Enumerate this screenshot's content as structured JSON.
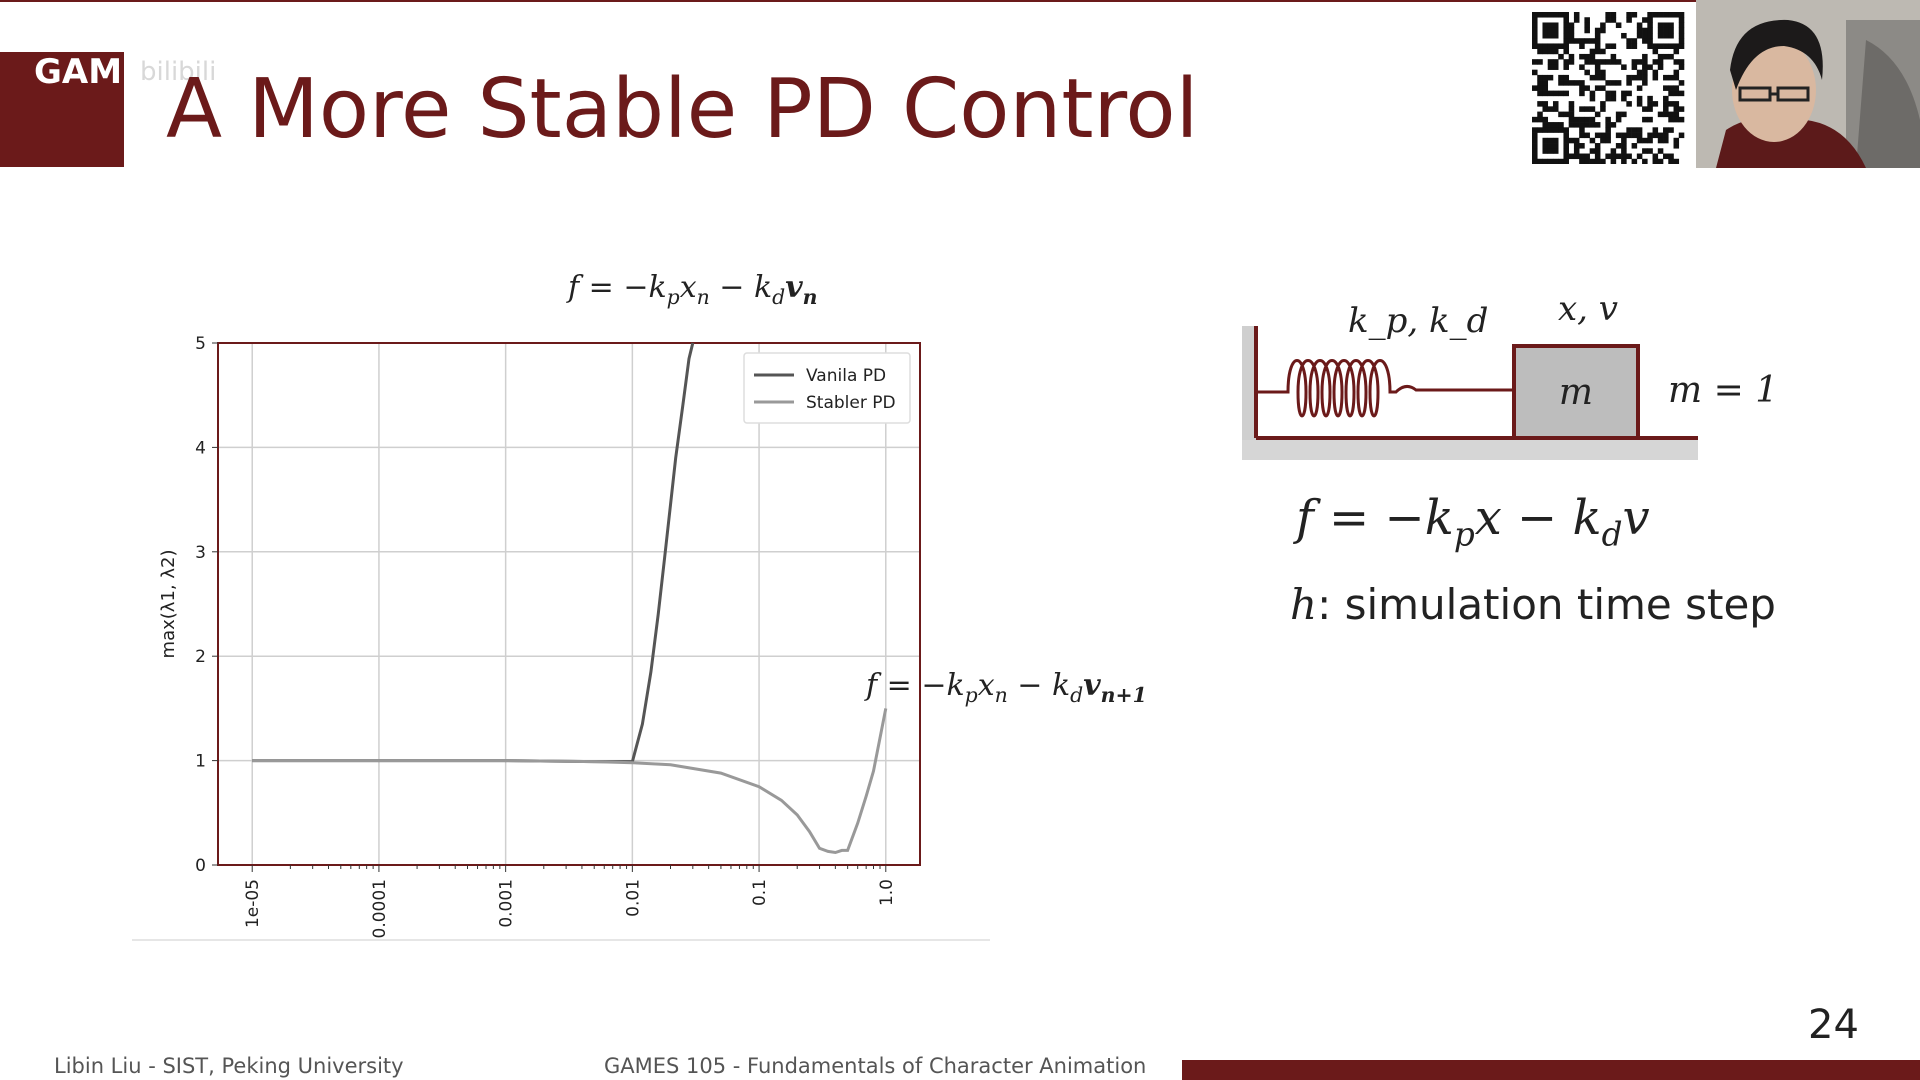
{
  "slide": {
    "title": "A More Stable PD Control",
    "brand": "GAMES",
    "watermark": "bilibili",
    "page_number": "24",
    "footer_left": "Libin Liu - SIST, Peking University",
    "footer_center": "GAMES 105 - Fundamentals of Character Animation",
    "accent_color": "#6b1a1a"
  },
  "formulas": {
    "top": {
      "f": "f",
      "eq": " = −k",
      "p": "p",
      "x": "x",
      "n1": "n",
      "m": " − k",
      "d": "d",
      "v": "v",
      "n2": "n"
    },
    "lower": {
      "f": "f",
      "eq": " = −k",
      "p": "p",
      "x": "x",
      "n1": "n",
      "m": " − k",
      "d": "d",
      "v": "v",
      "n2": "n+1"
    }
  },
  "chart_data": {
    "type": "line",
    "title": "",
    "xlabel": "",
    "ylabel": "max(λ1, λ2)",
    "x_scale": "log",
    "xlim": [
      1e-05,
      1.0
    ],
    "ylim": [
      0,
      5
    ],
    "x_ticks": [
      "1e-05",
      "0.0001",
      "0.001",
      "0.01",
      "0.1",
      "1.0"
    ],
    "x_tick_values": [
      1e-05,
      0.0001,
      0.001,
      0.01,
      0.1,
      1.0
    ],
    "y_ticks": [
      "0",
      "1",
      "2",
      "3",
      "4",
      "5"
    ],
    "y_tick_values": [
      0,
      1,
      2,
      3,
      4,
      5
    ],
    "grid": true,
    "legend_position": "top-right",
    "series": [
      {
        "name": "Vanila PD",
        "color": "#555555",
        "x": [
          1e-05,
          0.0001,
          0.001,
          0.005,
          0.01,
          0.012,
          0.014,
          0.016,
          0.018,
          0.02,
          0.022,
          0.025,
          0.028,
          0.03
        ],
        "y": [
          1.0,
          1.0,
          1.0,
          0.99,
          0.99,
          1.35,
          1.85,
          2.4,
          2.95,
          3.45,
          3.9,
          4.4,
          4.85,
          5.0
        ]
      },
      {
        "name": "Stabler PD",
        "color": "#999999",
        "x": [
          1e-05,
          0.0001,
          0.001,
          0.005,
          0.01,
          0.02,
          0.05,
          0.1,
          0.15,
          0.2,
          0.25,
          0.3,
          0.35,
          0.4,
          0.45,
          0.5,
          0.6,
          0.7,
          0.8,
          1.0
        ],
        "y": [
          1.0,
          1.0,
          1.0,
          0.99,
          0.98,
          0.96,
          0.88,
          0.75,
          0.62,
          0.48,
          0.32,
          0.16,
          0.13,
          0.12,
          0.14,
          0.14,
          0.4,
          0.66,
          0.9,
          1.5
        ]
      }
    ]
  },
  "mechanics": {
    "spring_label": "k_p, k_d",
    "state_label": "x, v",
    "mass_symbol": "m",
    "mass_value": "m = 1",
    "force_eq": {
      "f": "f",
      "eq": " = −k",
      "p": "p",
      "x": "x",
      "m": " − k",
      "d": "d",
      "v": "v"
    },
    "step_var": "h",
    "step_text": ": simulation time step"
  }
}
